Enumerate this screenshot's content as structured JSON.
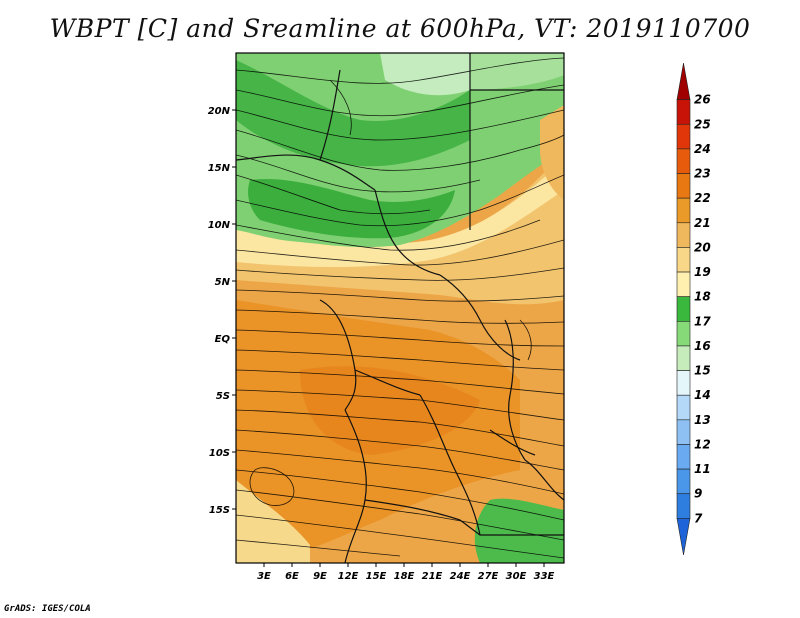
{
  "title": "WBPT [C] and Sreamline at 600hPa, VT: 2019110700",
  "credit": "GrADS: IGES/COLA",
  "axes": {
    "lat_labels": [
      "20N",
      "15N",
      "10N",
      "5N",
      "EQ",
      "5S",
      "10S",
      "15S"
    ],
    "lat_values": [
      20,
      15,
      10,
      5,
      0,
      -5,
      -10,
      -15
    ],
    "lon_labels": [
      "3E",
      "6E",
      "9E",
      "12E",
      "15E",
      "18E",
      "21E",
      "24E",
      "27E",
      "30E",
      "33E"
    ],
    "lon_values": [
      3,
      6,
      9,
      12,
      15,
      18,
      21,
      24,
      27,
      30,
      33
    ],
    "lat_range": [
      -20,
      24.5
    ],
    "lon_range": [
      0.5,
      35
    ]
  },
  "colorbar": {
    "labels": [
      "7",
      "9",
      "11",
      "12",
      "13",
      "14",
      "15",
      "16",
      "17",
      "18",
      "19",
      "20",
      "21",
      "22",
      "23",
      "24",
      "25",
      "26"
    ],
    "colors": [
      "#1e64d8",
      "#2e7ee0",
      "#4a96e8",
      "#6aaaf0",
      "#8ec0f4",
      "#b4d8f8",
      "#e4f6fa",
      "#c6ecbc",
      "#86da78",
      "#3ab83e",
      "#fff0b0",
      "#f8d888",
      "#f0b85c",
      "#ea9a28",
      "#e87812",
      "#e65c0c",
      "#e0360a",
      "#c81408",
      "#a00000"
    ]
  },
  "field": {
    "dominant_ranges": "Green (16–18) north of ~10N; cream/light orange (19–20) near 5–10N; orange (21–22) from EQ southward; green patches near 13–19S east of 24E"
  }
}
